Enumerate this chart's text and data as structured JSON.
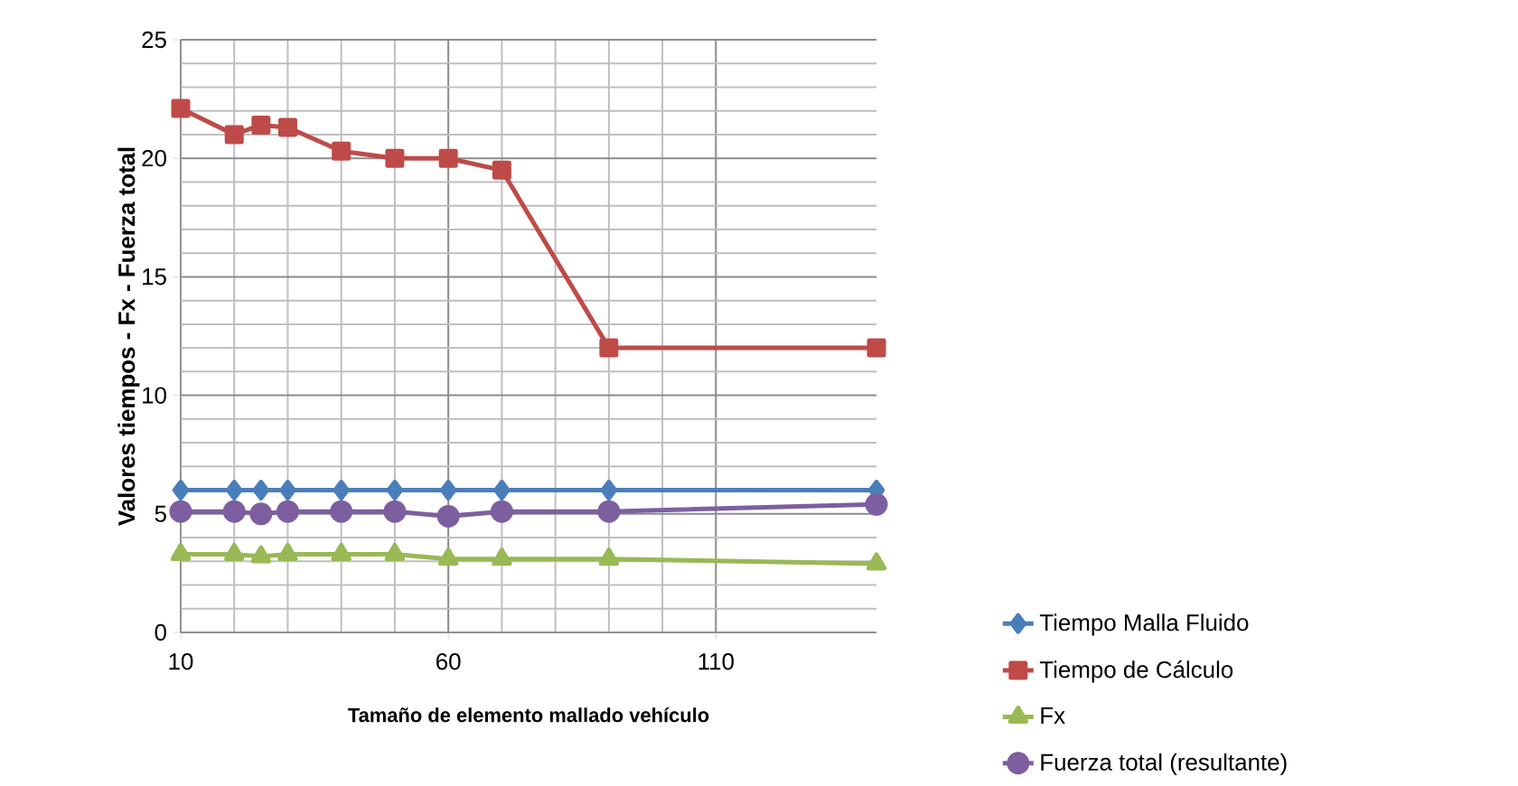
{
  "chart_data": {
    "type": "line",
    "xlabel": "Tamaño de elemento mallado vehículo",
    "ylabel": "Valores tiempos - Fx - Fuerza total",
    "x": [
      10,
      20,
      25,
      30,
      40,
      50,
      60,
      70,
      90,
      140
    ],
    "series": [
      {
        "name": "Tiempo Malla Fluido",
        "color": "#4a7ebb",
        "marker": "diamond",
        "values": [
          6.0,
          6.0,
          6.0,
          6.0,
          6.0,
          6.0,
          6.0,
          6.0,
          6.0,
          6.0
        ]
      },
      {
        "name": "Tiempo de Cálculo",
        "color": "#be4b48",
        "marker": "square",
        "values": [
          22.1,
          21.0,
          21.4,
          21.3,
          20.3,
          20.0,
          20.0,
          19.5,
          12.0,
          12.0
        ]
      },
      {
        "name": "Fx",
        "color": "#98b954",
        "marker": "triangle",
        "values": [
          3.3,
          3.3,
          3.2,
          3.3,
          3.3,
          3.3,
          3.1,
          3.1,
          3.1,
          2.9
        ]
      },
      {
        "name": "Fuerza total (resultante)",
        "color": "#7d5fa0",
        "marker": "circle",
        "values": [
          5.1,
          5.1,
          5.0,
          5.1,
          5.1,
          5.1,
          4.9,
          5.1,
          5.1,
          5.4
        ]
      }
    ],
    "xlim": [
      10,
      140
    ],
    "xticks": [
      10,
      60,
      110
    ],
    "ylim": [
      0,
      25
    ],
    "yticks": [
      0,
      5,
      10,
      15,
      20,
      25
    ],
    "grid": true,
    "legend": "bottom right",
    "line_style": "solid"
  }
}
